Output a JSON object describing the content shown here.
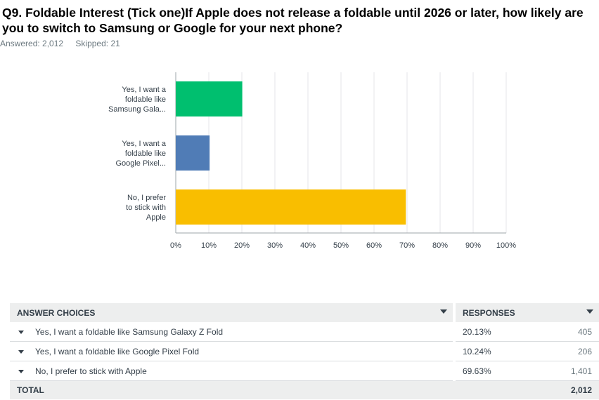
{
  "question": {
    "title": "Q9. Foldable Interest (Tick one)If Apple does not release a foldable until 2026 or later, how likely are you to switch to Samsung or Google for your next phone?",
    "answered_label": "Answered: 2,012",
    "skipped_label": "Skipped: 21"
  },
  "chart_data": {
    "type": "bar",
    "orientation": "horizontal",
    "categories": [
      [
        "Yes, I want a",
        "foldable like",
        "Samsung Gala..."
      ],
      [
        "Yes, I want a",
        "foldable like",
        "Google Pixel..."
      ],
      [
        "No, I prefer",
        "to stick with",
        "Apple"
      ]
    ],
    "values": [
      20.13,
      10.24,
      69.63
    ],
    "colors": [
      "#00bf6f",
      "#507cb6",
      "#f9be00"
    ],
    "xlim": [
      0,
      100
    ],
    "xticks": [
      "0%",
      "10%",
      "20%",
      "30%",
      "40%",
      "50%",
      "60%",
      "70%",
      "80%",
      "90%",
      "100%"
    ],
    "grid": true
  },
  "table": {
    "headers": {
      "choices": "ANSWER CHOICES",
      "responses": "RESPONSES"
    },
    "rows": [
      {
        "choice": "Yes, I want a foldable like Samsung Galaxy Z Fold",
        "percent": "20.13%",
        "count": "405"
      },
      {
        "choice": "Yes, I want a foldable like Google Pixel Fold",
        "percent": "10.24%",
        "count": "206"
      },
      {
        "choice": "No, I prefer to stick with Apple",
        "percent": "69.63%",
        "count": "1,401"
      }
    ],
    "total": {
      "label": "TOTAL",
      "count": "2,012"
    }
  }
}
